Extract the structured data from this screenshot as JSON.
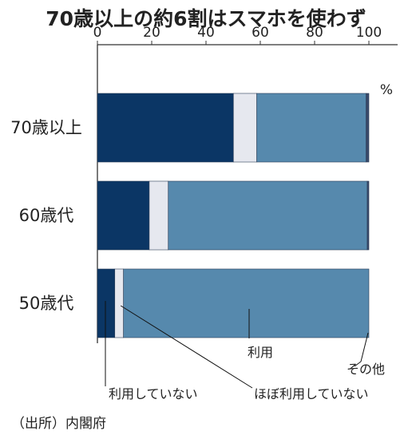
{
  "title": "70歳以上の約6割はスマホを使わず",
  "source": "（出所）内閣府",
  "unit": "%",
  "colors": {
    "not_use": "#0b3665",
    "rarely": "#e6e8ef",
    "use": "#5689ad",
    "other": "#3a4a6b",
    "axis": "#333333"
  },
  "chart_data": {
    "type": "bar",
    "orientation": "horizontal",
    "stacked": true,
    "xlim": [
      0,
      100
    ],
    "xticks": [
      "0",
      "20",
      "40",
      "60",
      "80",
      "100"
    ],
    "categories": [
      "70歳以上",
      "60歳代",
      "50歳代"
    ],
    "series": [
      {
        "name": "利用していない",
        "color_key": "not_use",
        "values": [
          50.1,
          19.1,
          6.4
        ]
      },
      {
        "name": "ほぼ利用していない",
        "color_key": "rarely",
        "values": [
          8.6,
          7.0,
          3.2
        ]
      },
      {
        "name": "利用",
        "color_key": "use",
        "values": [
          40.3,
          73.3,
          90.4
        ]
      },
      {
        "name": "その他",
        "color_key": "other",
        "values": [
          1.0,
          0.6,
          0.0
        ]
      }
    ]
  }
}
